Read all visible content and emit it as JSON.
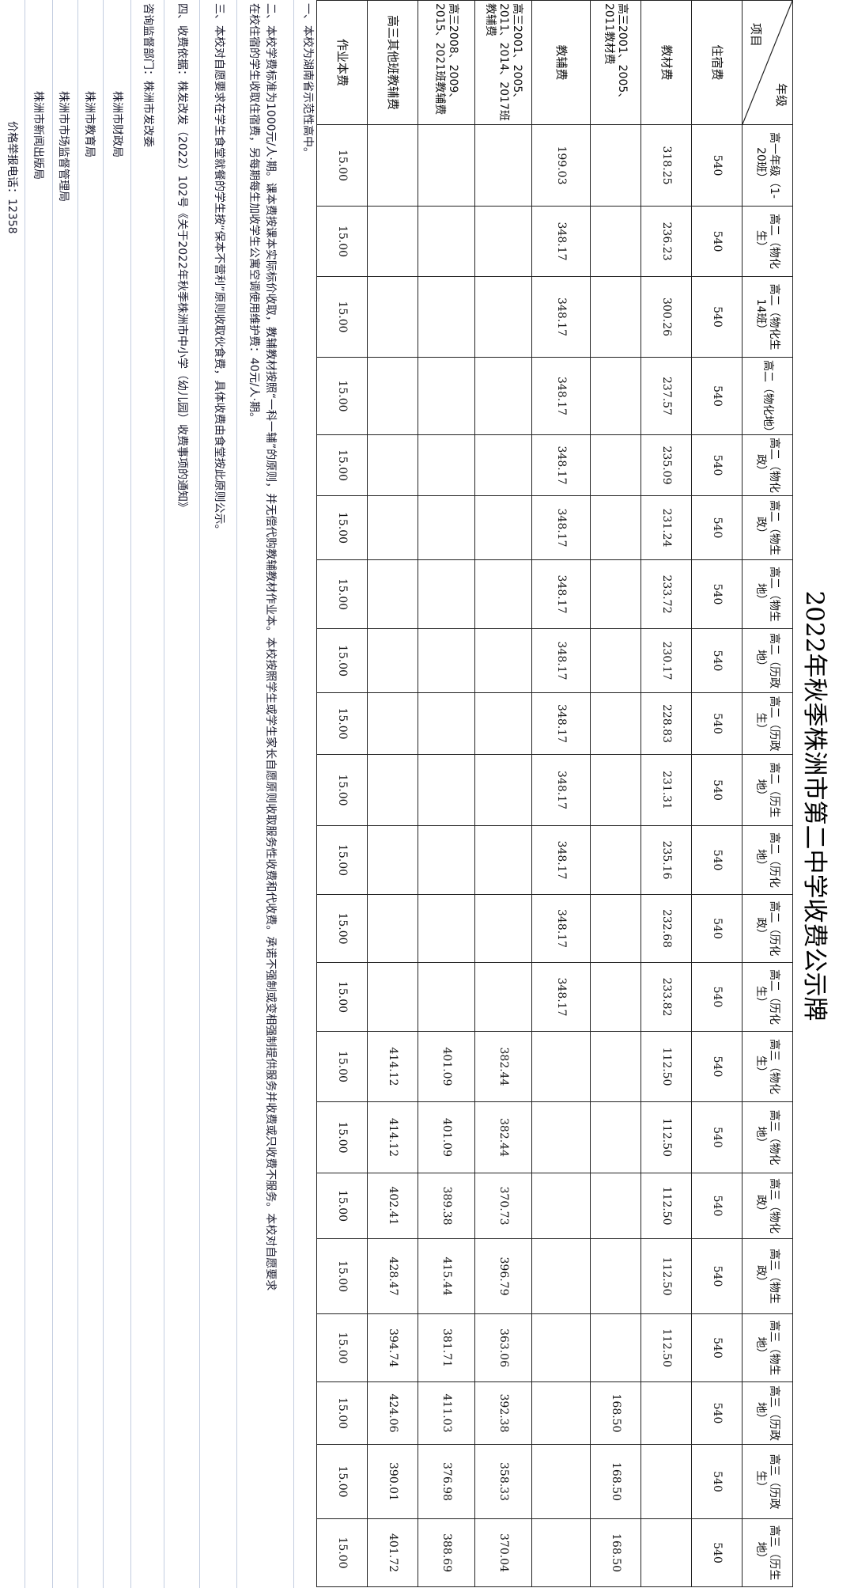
{
  "title": "2022年秋季株洲市第二中学收费公示牌",
  "table": {
    "corner": {
      "top_right": "年级",
      "bottom_left": "项目"
    },
    "columns": [
      "高一年级（1-20班）",
      "高二（物化生）",
      "高二（物化生14班）",
      "高二（物化地）",
      "高二（物化政）",
      "高二（物生政）",
      "高二（物生地）",
      "高二（历政地）",
      "高二（历政生）",
      "高二（历生地）",
      "高二（历化地）",
      "高二（历化政）",
      "高二（历化生）",
      "高三（物化生）",
      "高三（物化地）",
      "高三（物化政）",
      "高三（物生政）",
      "高三（物生地）",
      "高三（历政地）",
      "高三（历政生）",
      "高三（历生地）"
    ],
    "rows": [
      {
        "label": "住宿费",
        "values": [
          "540",
          "540",
          "540",
          "540",
          "540",
          "540",
          "540",
          "540",
          "540",
          "540",
          "540",
          "540",
          "540",
          "540",
          "540",
          "540",
          "540",
          "540",
          "540",
          "540",
          "540"
        ]
      },
      {
        "label": "教材费",
        "values": [
          "318.25",
          "236.23",
          "300.26",
          "237.57",
          "235.09",
          "231.24",
          "233.72",
          "230.17",
          "228.83",
          "231.31",
          "235.16",
          "232.68",
          "233.82",
          "112.50",
          "112.50",
          "112.50",
          "112.50",
          "112.50",
          "",
          "",
          ""
        ]
      },
      {
        "label": "高三2001、2005、2011教材费",
        "values": [
          "",
          "",
          "",
          "",
          "",
          "",
          "",
          "",
          "",
          "",
          "",
          "",
          "",
          "",
          "",
          "",
          "",
          "",
          "168.50",
          "168.50",
          "168.50"
        ]
      },
      {
        "label": "教辅费",
        "values": [
          "199.03",
          "348.17",
          "348.17",
          "348.17",
          "348.17",
          "348.17",
          "348.17",
          "348.17",
          "348.17",
          "348.17",
          "348.17",
          "348.17",
          "348.17",
          "",
          "",
          "",
          "",
          "",
          "",
          "",
          ""
        ]
      },
      {
        "label": "高三2001、2005、2011、2014、2017班教辅费",
        "values": [
          "",
          "",
          "",
          "",
          "",
          "",
          "",
          "",
          "",
          "",
          "",
          "",
          "",
          "382.44",
          "382.44",
          "370.73",
          "396.79",
          "363.06",
          "392.38",
          "358.33",
          "370.04"
        ]
      },
      {
        "label": "高三2008、2009、2015、2021班教辅费",
        "values": [
          "",
          "",
          "",
          "",
          "",
          "",
          "",
          "",
          "",
          "",
          "",
          "",
          "",
          "401.09",
          "401.09",
          "389.38",
          "415.44",
          "381.71",
          "411.03",
          "376.98",
          "388.69"
        ]
      },
      {
        "label": "高三其他班教辅费",
        "values": [
          "",
          "",
          "",
          "",
          "",
          "",
          "",
          "",
          "",
          "",
          "",
          "",
          "",
          "414.12",
          "414.12",
          "402.41",
          "428.47",
          "394.74",
          "424.06",
          "390.01",
          "401.72"
        ]
      },
      {
        "label": "作业本费",
        "values": [
          "15.00",
          "15.00",
          "15.00",
          "15.00",
          "15.00",
          "15.00",
          "15.00",
          "15.00",
          "15.00",
          "15.00",
          "15.00",
          "15.00",
          "15.00",
          "15.00",
          "15.00",
          "15.00",
          "15.00",
          "15.00",
          "15.00",
          "15.00",
          "15.00"
        ]
      }
    ]
  },
  "notes": {
    "item1": "一、本校为湖南省示范性高中。",
    "item2_line1": "二、本校学费标准为1000元/人·期。课本费按课本实际标价收取，教辅教材按照“一科一辅”的原则，并无偿代购教辅教材作业本。本校按照学生或学生家长自愿原则收取服务性收费和代收费。承诺不强制或变相强制提供服务并收费或只收费不服务。本校对自愿要求",
    "item2_line2": "在校住宿的学生收取住宿费，另每期每生加收学生公寓空调使用维护费：40元/人·期。",
    "item3": "三、本校对自愿要求在学生食堂就餐的学生按“保本不营利”原则收取伙食费，具体收费由食堂按此原则公示。",
    "item4": "四、收费依据：株发改发（2022）102号《关于2022年秋季株洲市中小学（幼儿园）收费事项的通知》",
    "supervision_label": "咨询监督部门：",
    "agencies": [
      "株洲市发改委",
      "株洲市财政局",
      "株洲市教育局",
      "株洲市市场监督管理局",
      "株洲市新闻出版局"
    ],
    "hotline": "价格举报电话：12358"
  },
  "colors": {
    "text": "#111111",
    "border": "#222222",
    "gridline": "#c3cde0"
  }
}
